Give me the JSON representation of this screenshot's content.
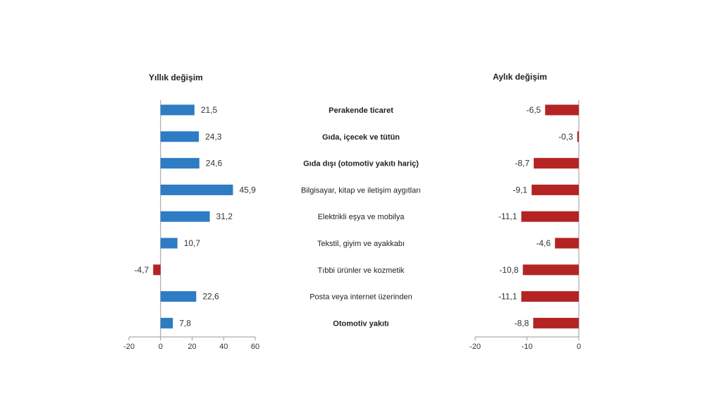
{
  "chart_data": [
    {
      "type": "bar",
      "orientation": "horizontal",
      "title": "Yıllık değişim",
      "categories": [
        "Perakende ticaret",
        "Gıda, içecek ve tütün",
        "Gıda dışı (otomotiv yakıtı hariç)",
        "Bilgisayar, kitap ve iletişim aygıtları",
        "Elektrikli eşya ve mobilya",
        "Tekstil, giyim ve ayakkabı",
        "Tıbbi ürünler ve kozmetik",
        "Posta veya internet üzerinden",
        "Otomotiv yakıtı"
      ],
      "values": [
        21.5,
        24.3,
        24.6,
        45.9,
        31.2,
        10.7,
        -4.7,
        22.6,
        7.8
      ],
      "value_labels": [
        "21,5",
        "24,3",
        "24,6",
        "45,9",
        "31,2",
        "10,7",
        "-4,7",
        "22,6",
        "7,8"
      ],
      "xlim": [
        -20,
        60
      ],
      "xticks": [
        -20,
        0,
        20,
        40,
        60
      ],
      "xtick_labels": [
        "-20",
        "0",
        "20",
        "40",
        "60"
      ],
      "positive_color": "#2e7cc3",
      "negative_color": "#b52424",
      "grid": false
    },
    {
      "type": "bar",
      "orientation": "horizontal",
      "title": "Aylık değişim",
      "values": [
        -6.5,
        -0.3,
        -8.7,
        -9.1,
        -11.1,
        -4.6,
        -10.8,
        -11.1,
        -8.8
      ],
      "value_labels": [
        "-6,5",
        "-0,3",
        "-8,7",
        "-9,1",
        "-11,1",
        "-4,6",
        "-10,8",
        "-11,1",
        "-8,8"
      ],
      "xlim": [
        -20,
        0
      ],
      "xticks": [
        -20,
        -10,
        0
      ],
      "xtick_labels": [
        "-20",
        "-10",
        "0"
      ],
      "negative_color": "#b52424",
      "grid": false
    }
  ],
  "category_emphasis": [
    true,
    true,
    true,
    false,
    false,
    false,
    false,
    false,
    true
  ]
}
